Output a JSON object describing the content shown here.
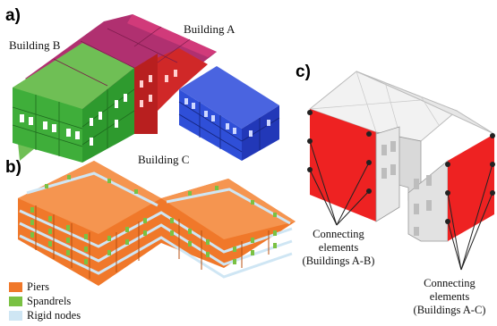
{
  "panels": {
    "a": {
      "letter": "a)",
      "labels": {
        "building_a": "Building  A",
        "building_b": "Building  B",
        "building_c": "Building  C"
      }
    },
    "b": {
      "letter": "b)",
      "legend": [
        {
          "label": "Piers",
          "color": "#f0782a"
        },
        {
          "label": "Spandrels",
          "color": "#7ac143"
        },
        {
          "label": "Rigid  nodes",
          "color": "#cfe6f4"
        }
      ]
    },
    "c": {
      "letter": "c)",
      "connectors": [
        {
          "lines": [
            "Connecting",
            "elements",
            "(Buildings  A-B)"
          ]
        },
        {
          "lines": [
            "Connecting",
            "elements",
            "(Buildings  A-C)"
          ]
        }
      ]
    }
  },
  "colors": {
    "building_a_magenta": "#c2185b",
    "building_b_green": "#3fae3a",
    "building_c_blue": "#2f4fd8",
    "red_wall": "#ee2222",
    "pier_orange": "#f0782a",
    "spandrel_green": "#7ac143",
    "node_blue": "#cfe6f4"
  }
}
